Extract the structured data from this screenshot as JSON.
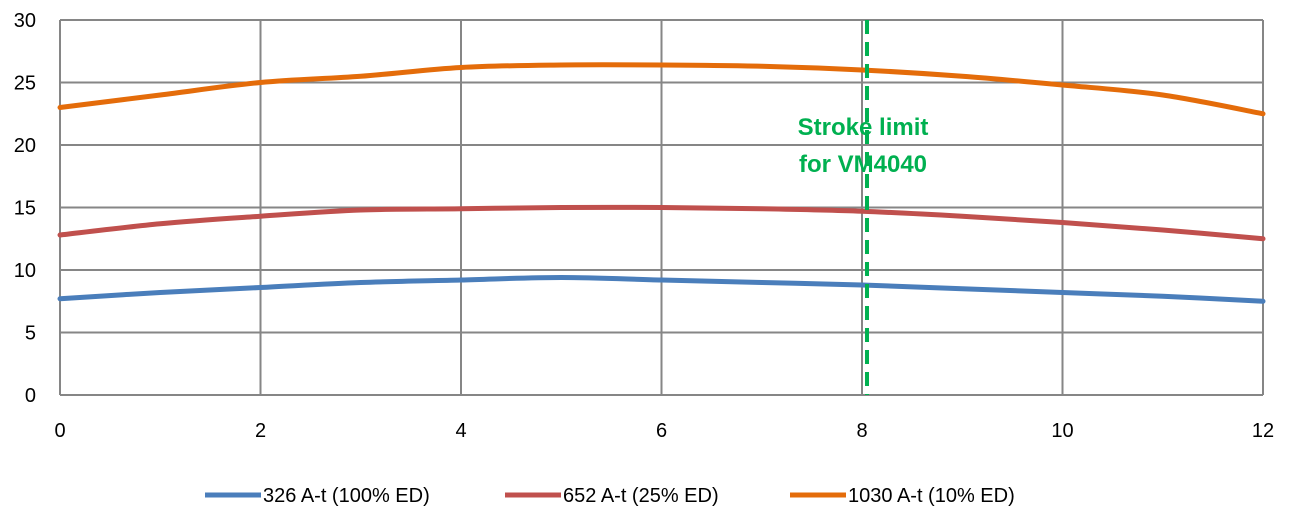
{
  "chart_data": {
    "type": "line",
    "title": "",
    "xlabel": "",
    "ylabel": "",
    "xlim": [
      0,
      12
    ],
    "ylim": [
      0,
      30
    ],
    "x_ticks": [
      0,
      2,
      4,
      6,
      8,
      10,
      12
    ],
    "y_ticks": [
      0,
      5,
      10,
      15,
      20,
      25,
      30
    ],
    "x_tick_labels": [
      "0",
      "2",
      "4",
      "6",
      "8",
      "10",
      "12"
    ],
    "y_tick_labels": [
      "0",
      "5",
      "10",
      "15",
      "20",
      "25",
      "30"
    ],
    "grid": true,
    "legend_position": "bottom",
    "series": [
      {
        "name": "326 A-t (100% ED)",
        "color": "#4a7ebb",
        "x": [
          0,
          1,
          2,
          3,
          4,
          5,
          6,
          7,
          8,
          9,
          10,
          11,
          12
        ],
        "y": [
          7.7,
          8.2,
          8.6,
          9.0,
          9.2,
          9.4,
          9.2,
          9.0,
          8.8,
          8.5,
          8.2,
          7.9,
          7.5
        ]
      },
      {
        "name": "652 A-t (25% ED)",
        "color": "#c0504d",
        "x": [
          0,
          1,
          2,
          3,
          4,
          5,
          6,
          7,
          8,
          9,
          10,
          11,
          12
        ],
        "y": [
          12.8,
          13.7,
          14.3,
          14.8,
          14.9,
          15.0,
          15.0,
          14.9,
          14.7,
          14.3,
          13.8,
          13.2,
          12.5
        ]
      },
      {
        "name": "1030 A-t (10% ED)",
        "color": "#e46c0a",
        "x": [
          0,
          1,
          2,
          3,
          4,
          5,
          6,
          7,
          8,
          9,
          10,
          11,
          12
        ],
        "y": [
          23.0,
          24.0,
          25.0,
          25.5,
          26.2,
          26.4,
          26.4,
          26.3,
          26.0,
          25.5,
          24.8,
          24.0,
          22.5
        ]
      }
    ],
    "vertical_marker": {
      "x": 8.05,
      "color": "#00b050",
      "style": "dashed",
      "label_lines": [
        "Stroke limit",
        "for VM4040"
      ]
    }
  }
}
